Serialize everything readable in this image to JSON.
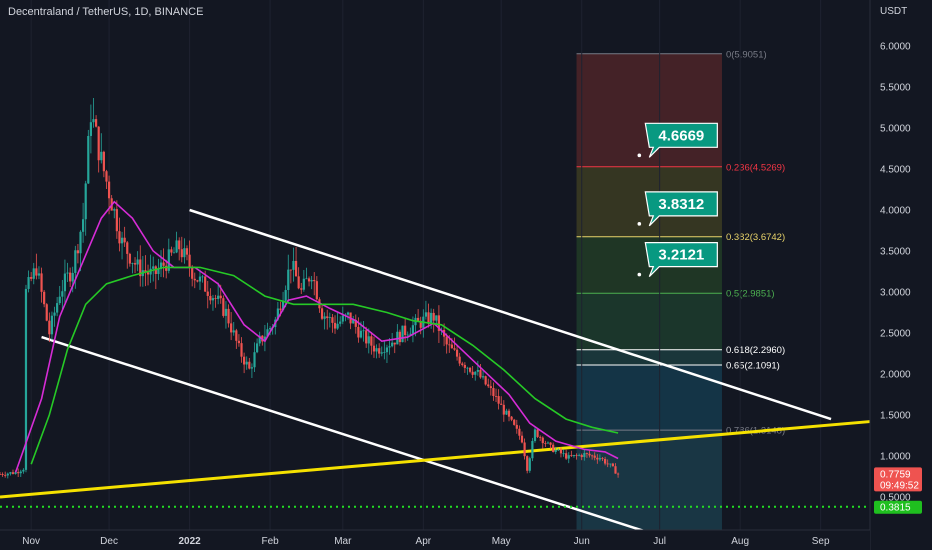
{
  "header": {
    "symbol_title": "Decentraland / TetherUS, 1D, BINANCE",
    "currency": "USDT"
  },
  "colors": {
    "background": "#131722",
    "grid": "#1e2230",
    "axis_text": "#d1d4dc",
    "up_candle": "#26a69a",
    "down_candle": "#ef5350",
    "ma_fast": "#d62cd6",
    "ma_slow": "#26c926",
    "channel": "#ffffff",
    "trendline": "#f5e100",
    "support_dotted": "#22dd22",
    "target_label": "#089981"
  },
  "chart_data": {
    "type": "line",
    "title": "Decentraland / TetherUS, 1D, BINANCE",
    "ylabel": "USDT",
    "ylim": [
      0.0,
      6.3
    ],
    "x_range": [
      "2021-10-20",
      "2022-09-20"
    ],
    "x_ticks": [
      {
        "label": "Nov",
        "date": "2021-11-01"
      },
      {
        "label": "Dec",
        "date": "2021-12-01"
      },
      {
        "label": "2022",
        "date": "2022-01-01"
      },
      {
        "label": "Feb",
        "date": "2022-02-01"
      },
      {
        "label": "Mar",
        "date": "2022-03-01"
      },
      {
        "label": "Apr",
        "date": "2022-04-01"
      },
      {
        "label": "May",
        "date": "2022-05-01"
      },
      {
        "label": "Jun",
        "date": "2022-06-01"
      },
      {
        "label": "Jul",
        "date": "2022-07-01"
      },
      {
        "label": "Aug",
        "date": "2022-08-01"
      },
      {
        "label": "Sep",
        "date": "2022-09-01"
      }
    ],
    "y_ticks": [
      "6.0000",
      "5.5000",
      "5.0000",
      "4.5000",
      "4.0000",
      "3.5000",
      "3.0000",
      "2.5000",
      "2.0000",
      "1.5000",
      "1.0000",
      "0.5000"
    ],
    "price_path": [
      [
        "2021-10-20",
        0.78
      ],
      [
        "2021-10-26",
        0.8
      ],
      [
        "2021-10-29",
        0.85
      ],
      [
        "2021-10-30",
        3.0
      ],
      [
        "2021-11-03",
        3.3
      ],
      [
        "2021-11-08",
        2.5
      ],
      [
        "2021-11-12",
        3.0
      ],
      [
        "2021-11-17",
        3.3
      ],
      [
        "2021-11-21",
        3.9
      ],
      [
        "2021-11-24",
        5.2
      ],
      [
        "2021-11-28",
        4.6
      ],
      [
        "2021-12-02",
        4.1
      ],
      [
        "2021-12-06",
        3.6
      ],
      [
        "2021-12-12",
        3.3
      ],
      [
        "2021-12-18",
        3.2
      ],
      [
        "2021-12-24",
        3.4
      ],
      [
        "2021-12-28",
        3.55
      ],
      [
        "2022-01-03",
        3.2
      ],
      [
        "2022-01-09",
        3.0
      ],
      [
        "2022-01-15",
        2.75
      ],
      [
        "2022-01-20",
        2.3
      ],
      [
        "2022-01-24",
        2.05
      ],
      [
        "2022-01-28",
        2.4
      ],
      [
        "2022-02-03",
        2.65
      ],
      [
        "2022-02-09",
        3.35
      ],
      [
        "2022-02-13",
        3.0
      ],
      [
        "2022-02-17",
        3.25
      ],
      [
        "2022-02-21",
        2.75
      ],
      [
        "2022-02-26",
        2.6
      ],
      [
        "2022-03-03",
        2.7
      ],
      [
        "2022-03-09",
        2.45
      ],
      [
        "2022-03-14",
        2.3
      ],
      [
        "2022-03-20",
        2.4
      ],
      [
        "2022-03-26",
        2.55
      ],
      [
        "2022-04-01",
        2.65
      ],
      [
        "2022-04-05",
        2.7
      ],
      [
        "2022-04-10",
        2.35
      ],
      [
        "2022-04-16",
        2.15
      ],
      [
        "2022-04-22",
        2.0
      ],
      [
        "2022-04-28",
        1.75
      ],
      [
        "2022-05-03",
        1.5
      ],
      [
        "2022-05-09",
        1.2
      ],
      [
        "2022-05-11",
        0.85
      ],
      [
        "2022-05-14",
        1.3
      ],
      [
        "2022-05-20",
        1.1
      ],
      [
        "2022-05-27",
        0.98
      ],
      [
        "2022-06-02",
        1.02
      ],
      [
        "2022-06-08",
        0.98
      ],
      [
        "2022-06-12",
        0.88
      ],
      [
        "2022-06-15",
        0.78
      ]
    ],
    "series": [
      {
        "name": "",
        "role": "ma_fast",
        "points": [
          [
            "2021-10-26",
            0.8
          ],
          [
            "2021-11-05",
            1.7
          ],
          [
            "2021-11-12",
            2.7
          ],
          [
            "2021-11-20",
            3.3
          ],
          [
            "2021-11-28",
            3.9
          ],
          [
            "2021-12-03",
            4.1
          ],
          [
            "2021-12-10",
            3.9
          ],
          [
            "2021-12-18",
            3.5
          ],
          [
            "2021-12-26",
            3.3
          ],
          [
            "2022-01-03",
            3.3
          ],
          [
            "2022-01-12",
            3.1
          ],
          [
            "2022-01-22",
            2.6
          ],
          [
            "2022-01-30",
            2.4
          ],
          [
            "2022-02-08",
            2.9
          ],
          [
            "2022-02-15",
            2.95
          ],
          [
            "2022-02-24",
            2.8
          ],
          [
            "2022-03-06",
            2.65
          ],
          [
            "2022-03-16",
            2.4
          ],
          [
            "2022-03-26",
            2.45
          ],
          [
            "2022-04-05",
            2.62
          ],
          [
            "2022-04-14",
            2.35
          ],
          [
            "2022-04-24",
            2.05
          ],
          [
            "2022-05-04",
            1.75
          ],
          [
            "2022-05-12",
            1.4
          ],
          [
            "2022-05-22",
            1.18
          ],
          [
            "2022-06-02",
            1.08
          ],
          [
            "2022-06-10",
            1.05
          ],
          [
            "2022-06-15",
            0.97
          ]
        ]
      },
      {
        "name": "",
        "role": "ma_slow",
        "points": [
          [
            "2021-11-01",
            0.9
          ],
          [
            "2021-11-08",
            1.5
          ],
          [
            "2021-11-15",
            2.3
          ],
          [
            "2021-11-22",
            2.85
          ],
          [
            "2021-11-30",
            3.1
          ],
          [
            "2021-12-10",
            3.2
          ],
          [
            "2021-12-22",
            3.3
          ],
          [
            "2022-01-05",
            3.3
          ],
          [
            "2022-01-18",
            3.2
          ],
          [
            "2022-01-30",
            2.95
          ],
          [
            "2022-02-10",
            2.85
          ],
          [
            "2022-02-22",
            2.85
          ],
          [
            "2022-03-05",
            2.85
          ],
          [
            "2022-03-18",
            2.75
          ],
          [
            "2022-03-28",
            2.65
          ],
          [
            "2022-04-08",
            2.6
          ],
          [
            "2022-04-20",
            2.35
          ],
          [
            "2022-05-02",
            2.05
          ],
          [
            "2022-05-14",
            1.7
          ],
          [
            "2022-05-26",
            1.45
          ],
          [
            "2022-06-05",
            1.35
          ],
          [
            "2022-06-15",
            1.28
          ]
        ]
      }
    ],
    "lines": [
      {
        "name": "",
        "role": "channel_upper",
        "from": [
          "2022-01-01",
          4.0
        ],
        "to": [
          "2022-09-05",
          1.45
        ]
      },
      {
        "name": "",
        "role": "channel_lower",
        "from": [
          "2021-11-05",
          2.45
        ],
        "to": [
          "2022-07-20",
          -0.17
        ]
      },
      {
        "name": "",
        "role": "trendline",
        "from": [
          "2021-10-20",
          0.5
        ],
        "to": [
          "2022-09-20",
          1.42
        ]
      },
      {
        "name": "",
        "role": "support_dotted",
        "from": [
          "2021-10-20",
          0.3815
        ],
        "to": [
          "2022-09-20",
          0.3815
        ]
      }
    ],
    "fibonacci": {
      "x_range": [
        "2022-05-30",
        "2022-07-25"
      ],
      "levels": [
        {
          "label": "0(5.9051)",
          "value": 5.9051,
          "color": "#787b86"
        },
        {
          "label": "0.236(4.5269)",
          "value": 4.5269,
          "color": "#f23645"
        },
        {
          "label": "0.382(3.6742)",
          "value": 3.6742,
          "color": "#e8d36a"
        },
        {
          "label": "0.5(2.9851)",
          "value": 2.9851,
          "color": "#4caf50"
        },
        {
          "label": "0.618(2.2960)",
          "value": 2.296,
          "color": "#ffffff"
        },
        {
          "label": "0.65(2.1091)",
          "value": 2.1091,
          "color": "#ffffff"
        },
        {
          "label": "0.786(1.3148)",
          "value": 1.3148,
          "color": "#787b86"
        }
      ],
      "zones": [
        {
          "from": 5.9051,
          "to": 4.5269,
          "color": "#4a2428"
        },
        {
          "from": 4.5269,
          "to": 3.6742,
          "color": "#3a3a22"
        },
        {
          "from": 3.6742,
          "to": 2.9851,
          "color": "#213a26"
        },
        {
          "from": 2.9851,
          "to": 2.296,
          "color": "#1d3a2c"
        },
        {
          "from": 2.296,
          "to": 2.1091,
          "color": "#1c3a3d"
        },
        {
          "from": 2.1091,
          "to": 1.3148,
          "color": "#15374a"
        },
        {
          "from": 1.3148,
          "to": -0.1,
          "color": "#1b3a48"
        }
      ]
    },
    "targets": [
      {
        "label": "4.6669",
        "value": 4.6669,
        "anchor_date": "2022-06-02"
      },
      {
        "label": "3.8312",
        "value": 3.8312,
        "anchor_date": "2022-06-02"
      },
      {
        "label": "3.2121",
        "value": 3.2121,
        "anchor_date": "2022-06-02"
      }
    ],
    "price_tags": [
      {
        "label": "0.7759",
        "sub": "09:49:52",
        "value": 0.7759,
        "color": "#ef5350"
      },
      {
        "label": "0.3815",
        "value": 0.3815,
        "color": "#1fbf1f"
      }
    ]
  }
}
